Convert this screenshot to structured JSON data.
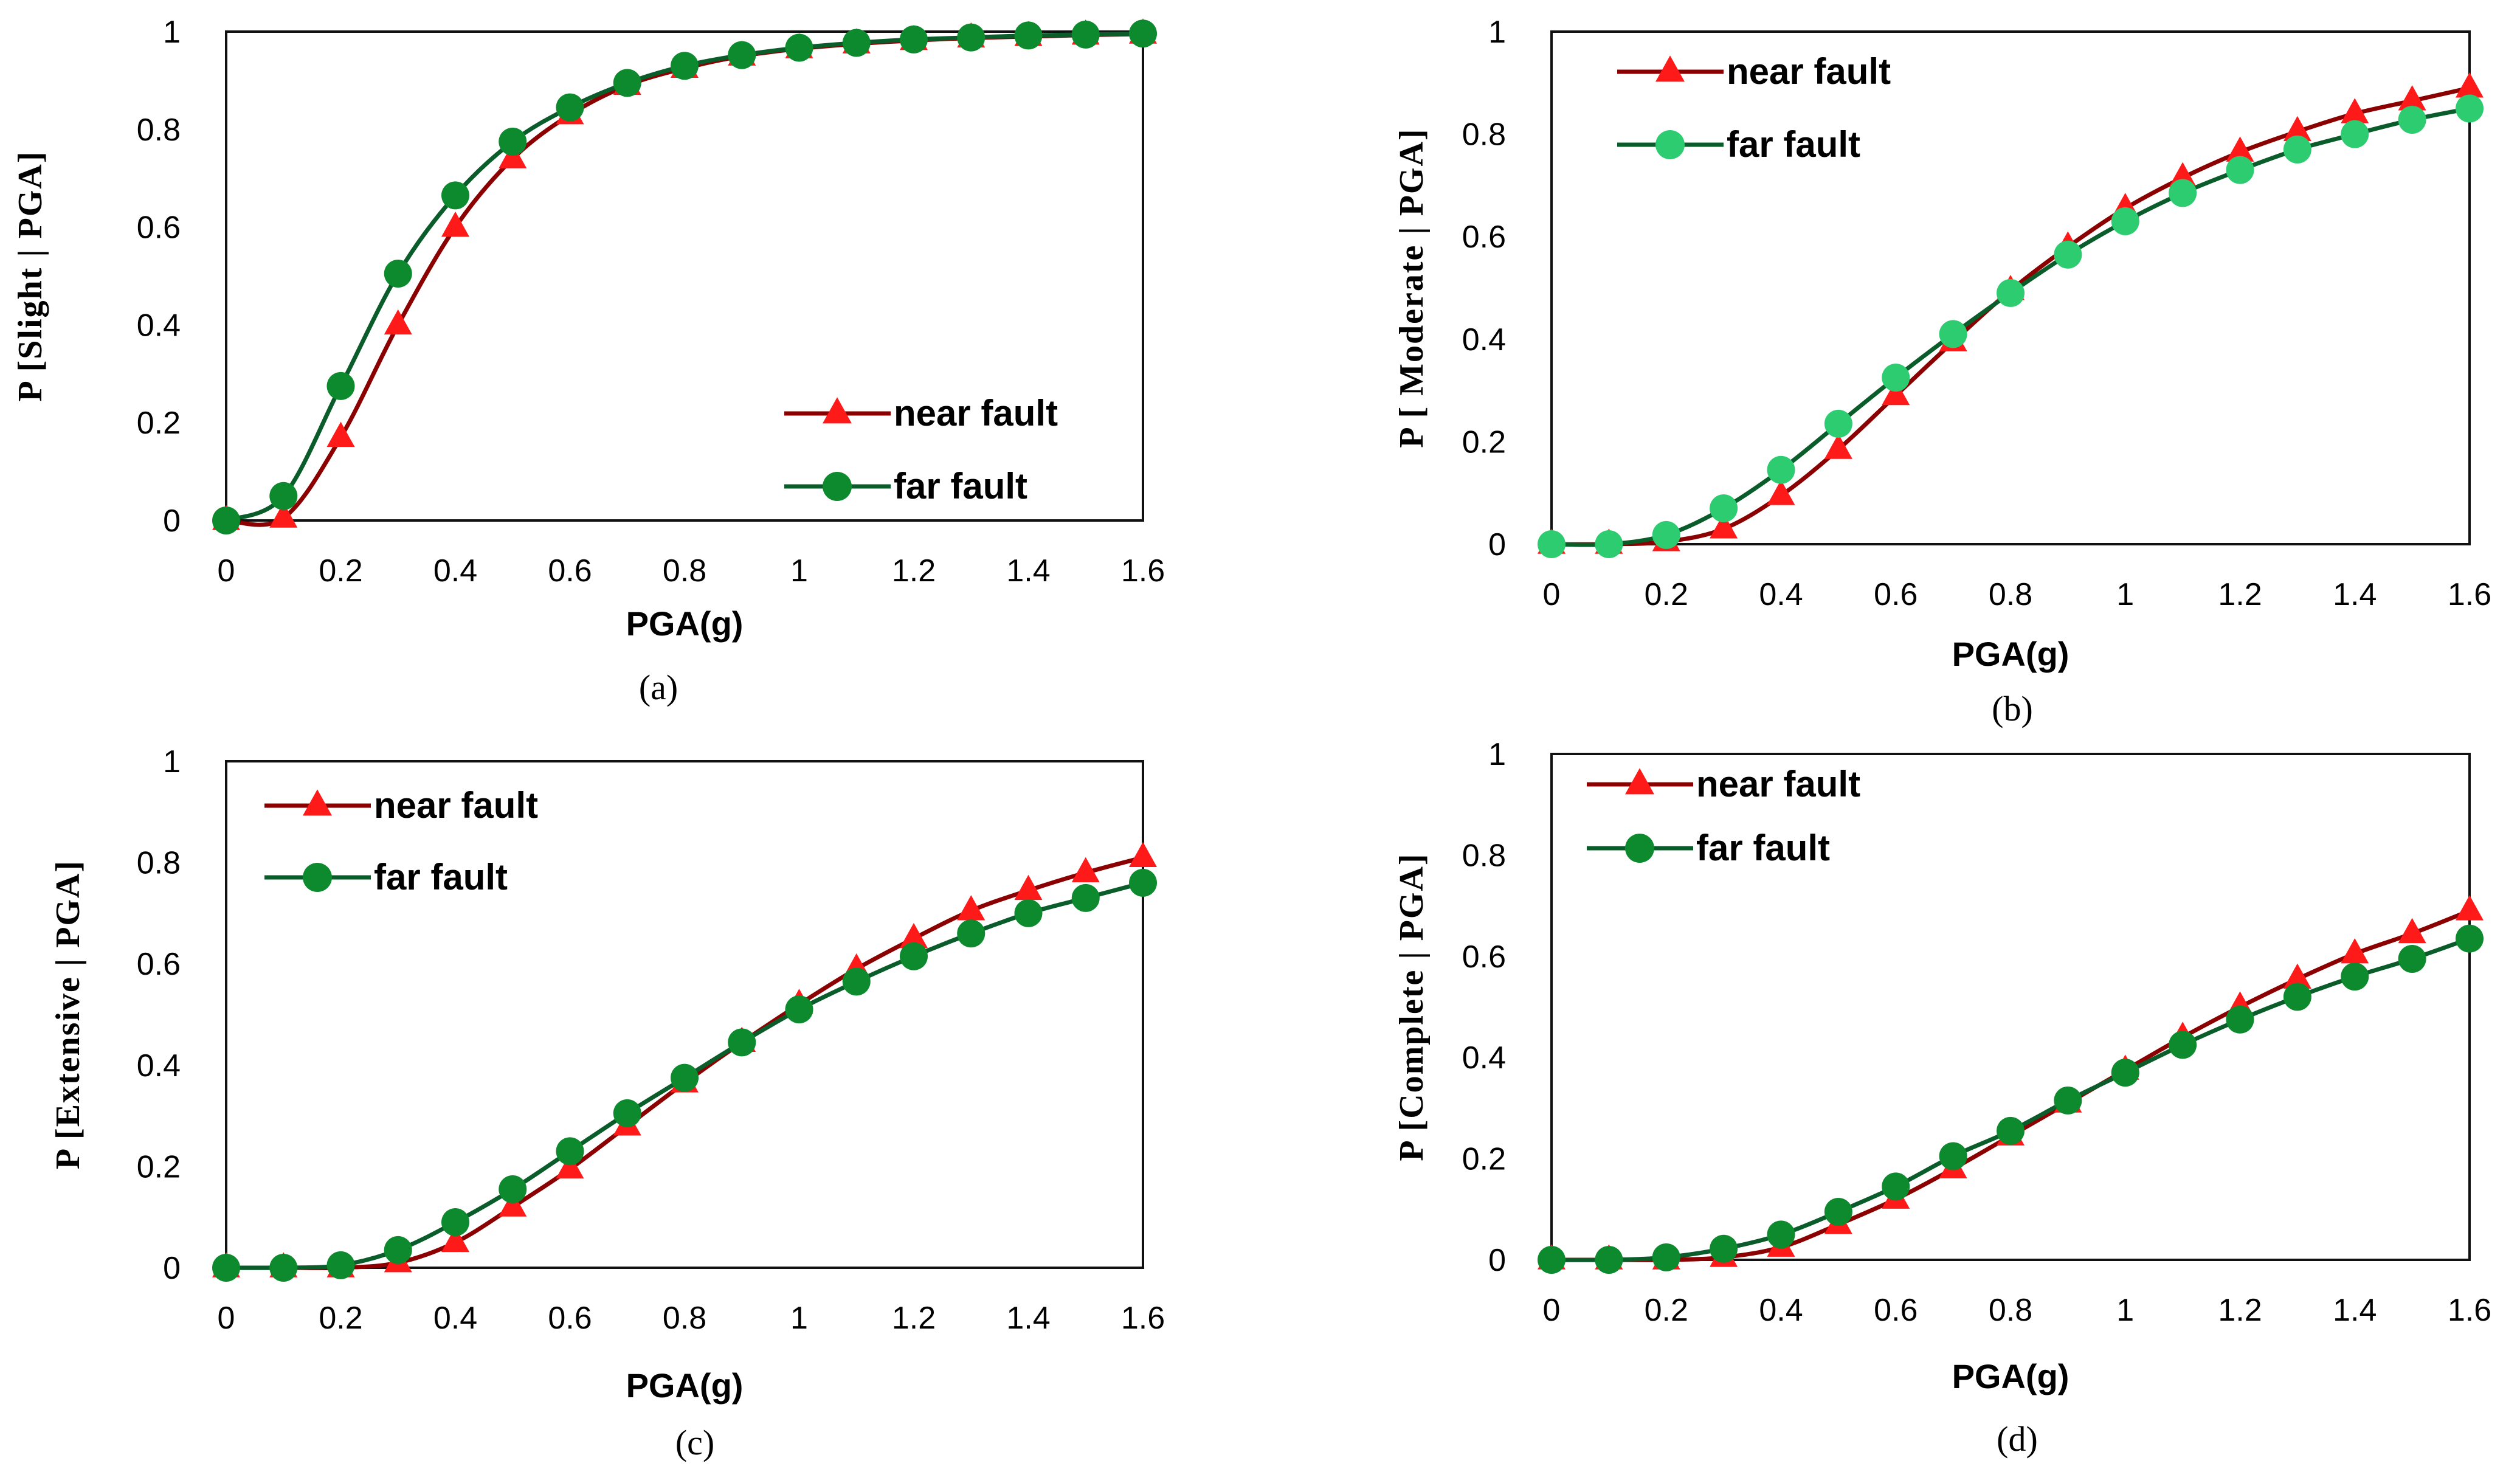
{
  "colors": {
    "near_line": "#8b0000",
    "near_marker": "#ff1a1a",
    "far_line": "#0a5c2a",
    "far_marker": "#0d8a2e",
    "far_marker_b": "#2ecc71"
  },
  "chart_data": [
    {
      "type": "line",
      "caption": "(a)",
      "xlabel": "PGA(g)",
      "ylabel": "P [Slight | PGA]",
      "xlim": [
        0,
        1.6
      ],
      "ylim": [
        0,
        1
      ],
      "xticks": [
        "0",
        "0.2",
        "0.4",
        "0.6",
        "0.8",
        "1",
        "1.2",
        "1.4",
        "1.6"
      ],
      "yticks": [
        "0",
        "0.2",
        "0.4",
        "0.6",
        "0.8",
        "1"
      ],
      "legend_position": "bottom-right",
      "x": [
        0,
        0.1,
        0.2,
        0.3,
        0.4,
        0.5,
        0.6,
        0.7,
        0.8,
        0.9,
        1.0,
        1.1,
        1.2,
        1.3,
        1.4,
        1.5,
        1.6
      ],
      "series": [
        {
          "name": "near fault",
          "marker": "triangle",
          "values": [
            0,
            0.005,
            0.17,
            0.4,
            0.6,
            0.74,
            0.83,
            0.89,
            0.925,
            0.95,
            0.965,
            0.975,
            0.982,
            0.987,
            0.99,
            0.993,
            0.995
          ]
        },
        {
          "name": "far fault",
          "marker": "circle",
          "values": [
            0,
            0.05,
            0.275,
            0.505,
            0.665,
            0.775,
            0.845,
            0.895,
            0.93,
            0.952,
            0.967,
            0.977,
            0.984,
            0.988,
            0.992,
            0.994,
            0.996
          ]
        }
      ]
    },
    {
      "type": "line",
      "caption": "(b)",
      "xlabel": "PGA(g)",
      "ylabel": "P [ Moderate | PGA]",
      "xlim": [
        0,
        1.6
      ],
      "ylim": [
        0,
        1
      ],
      "xticks": [
        "0",
        "0.2",
        "0.4",
        "0.6",
        "0.8",
        "1",
        "1.2",
        "1.4",
        "1.6"
      ],
      "yticks": [
        "0",
        "0.2",
        "0.4",
        "0.6",
        "0.8",
        "1"
      ],
      "legend_position": "top-left",
      "x": [
        0,
        0.1,
        0.2,
        0.3,
        0.4,
        0.5,
        0.6,
        0.7,
        0.8,
        0.9,
        1.0,
        1.1,
        1.2,
        1.3,
        1.4,
        1.5,
        1.6
      ],
      "series": [
        {
          "name": "near fault",
          "marker": "triangle",
          "values": [
            0,
            0,
            0.005,
            0.03,
            0.095,
            0.185,
            0.29,
            0.395,
            0.495,
            0.58,
            0.655,
            0.715,
            0.765,
            0.805,
            0.84,
            0.865,
            0.89
          ]
        },
        {
          "name": "far fault",
          "marker": "circle",
          "values": [
            0,
            0,
            0.018,
            0.07,
            0.145,
            0.235,
            0.325,
            0.41,
            0.49,
            0.565,
            0.63,
            0.685,
            0.73,
            0.77,
            0.8,
            0.828,
            0.85
          ]
        }
      ]
    },
    {
      "type": "line",
      "caption": "(c)",
      "xlabel": "PGA(g)",
      "ylabel": "P [Extensive | PGA]",
      "xlim": [
        0,
        1.6
      ],
      "ylim": [
        0,
        1
      ],
      "xticks": [
        "0",
        "0.2",
        "0.4",
        "0.6",
        "0.8",
        "1",
        "1.2",
        "1.4",
        "1.6"
      ],
      "yticks": [
        "0",
        "0.2",
        "0.4",
        "0.6",
        "0.8",
        "1"
      ],
      "legend_position": "top-left",
      "x": [
        0,
        0.1,
        0.2,
        0.3,
        0.4,
        0.5,
        0.6,
        0.7,
        0.8,
        0.9,
        1.0,
        1.1,
        1.2,
        1.3,
        1.4,
        1.5,
        1.6
      ],
      "series": [
        {
          "name": "near fault",
          "marker": "triangle",
          "values": [
            0,
            0,
            0,
            0.01,
            0.05,
            0.12,
            0.195,
            0.28,
            0.365,
            0.445,
            0.52,
            0.59,
            0.65,
            0.705,
            0.745,
            0.78,
            0.81
          ]
        },
        {
          "name": "far fault",
          "marker": "circle",
          "values": [
            0,
            0,
            0.005,
            0.035,
            0.09,
            0.155,
            0.23,
            0.305,
            0.375,
            0.445,
            0.51,
            0.565,
            0.615,
            0.66,
            0.7,
            0.73,
            0.76
          ]
        }
      ]
    },
    {
      "type": "line",
      "caption": "(d)",
      "xlabel": "PGA(g)",
      "ylabel": "P [Complete | PGA]",
      "xlim": [
        0,
        1.6
      ],
      "ylim": [
        0,
        1
      ],
      "xticks": [
        "0",
        "0.2",
        "0.4",
        "0.6",
        "0.8",
        "1",
        "1.2",
        "1.4",
        "1.6"
      ],
      "yticks": [
        "0",
        "0.2",
        "0.4",
        "0.6",
        "0.8",
        "1"
      ],
      "legend_position": "top-left",
      "x": [
        0,
        0.1,
        0.2,
        0.3,
        0.4,
        0.5,
        0.6,
        0.7,
        0.8,
        0.9,
        1.0,
        1.1,
        1.2,
        1.3,
        1.4,
        1.5,
        1.6
      ],
      "series": [
        {
          "name": "near fault",
          "marker": "triangle",
          "values": [
            0,
            0,
            0,
            0.005,
            0.025,
            0.07,
            0.12,
            0.18,
            0.245,
            0.31,
            0.375,
            0.44,
            0.5,
            0.555,
            0.605,
            0.645,
            0.69
          ]
        },
        {
          "name": "far fault",
          "marker": "circle",
          "values": [
            0,
            0,
            0.005,
            0.022,
            0.05,
            0.095,
            0.145,
            0.205,
            0.255,
            0.315,
            0.37,
            0.425,
            0.475,
            0.52,
            0.56,
            0.595,
            0.635
          ]
        }
      ]
    }
  ]
}
